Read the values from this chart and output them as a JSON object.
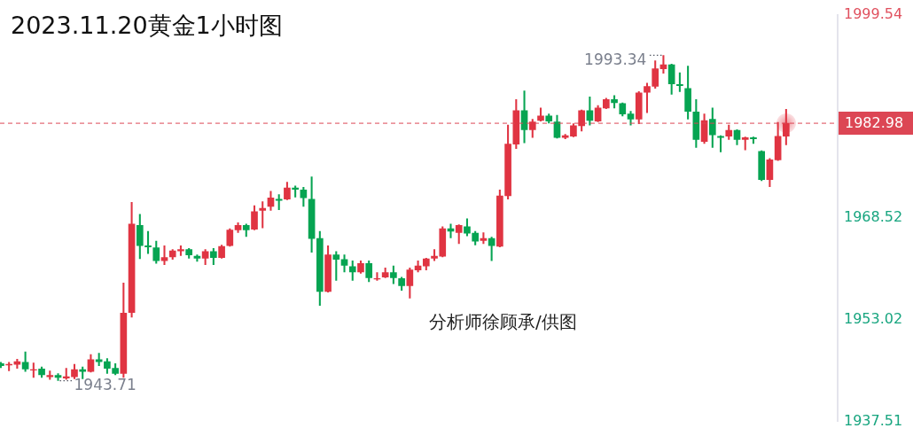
{
  "chart_data": {
    "type": "candlestick",
    "title": "2023.11.20黄金1小时图",
    "categories": [
      null,
      null,
      null,
      null,
      null,
      null,
      null,
      null,
      null,
      null,
      null,
      null,
      null,
      null,
      null,
      null,
      null,
      null,
      null,
      null,
      null,
      null,
      null,
      null,
      null,
      null,
      null,
      null,
      null,
      null,
      null,
      null,
      null,
      null,
      null,
      null,
      null,
      null,
      null,
      null,
      null,
      null,
      null,
      null,
      null,
      null,
      null,
      null,
      null,
      null,
      null,
      null,
      null,
      null,
      null,
      null,
      null,
      null,
      null,
      null,
      null,
      null,
      null,
      null,
      null,
      null,
      null,
      null,
      null,
      null,
      null,
      null,
      null,
      null,
      null,
      null,
      null,
      null,
      null,
      null,
      null,
      null,
      null,
      null,
      null,
      null,
      null,
      null,
      null,
      null,
      null,
      null,
      null,
      null,
      null,
      null,
      null
    ],
    "ohlc": [
      [
        1946.3,
        1946.5,
        1945.7,
        1946.0
      ],
      [
        1946.1,
        1946.5,
        1945.2,
        1946.2
      ],
      [
        1946.2,
        1947.0,
        1945.6,
        1946.6
      ],
      [
        1946.5,
        1948.1,
        1945.1,
        1945.5
      ],
      [
        1945.3,
        1946.4,
        1944.2,
        1945.4
      ],
      [
        1945.5,
        1945.8,
        1944.2,
        1944.6
      ],
      [
        1944.3,
        1945.2,
        1943.9,
        1944.5
      ],
      [
        1944.5,
        1944.8,
        1943.71,
        1944.2
      ],
      [
        1944.1,
        1945.6,
        1943.9,
        1944.3
      ],
      [
        1944.3,
        1946.2,
        1944.0,
        1945.4
      ],
      [
        1945.4,
        1945.8,
        1944.0,
        1945.1
      ],
      [
        1945.1,
        1947.7,
        1945.0,
        1946.9
      ],
      [
        1946.9,
        1947.9,
        1946.0,
        1946.6
      ],
      [
        1946.6,
        1947.1,
        1944.8,
        1945.6
      ],
      [
        1945.6,
        1946.3,
        1944.6,
        1944.8
      ],
      [
        1944.8,
        1958.6,
        1944.2,
        1954.0
      ],
      [
        1954.1,
        1970.9,
        1953.4,
        1967.6
      ],
      [
        1967.4,
        1969.1,
        1962.3,
        1964.3
      ],
      [
        1964.3,
        1966.5,
        1963.1,
        1964.1
      ],
      [
        1964.0,
        1965.0,
        1961.6,
        1962.0
      ],
      [
        1962.0,
        1964.3,
        1961.4,
        1962.5
      ],
      [
        1962.6,
        1963.7,
        1962.2,
        1963.5
      ],
      [
        1963.5,
        1964.3,
        1962.8,
        1963.7
      ],
      [
        1963.7,
        1963.9,
        1962.4,
        1962.9
      ],
      [
        1962.7,
        1962.9,
        1961.9,
        1962.4
      ],
      [
        1962.4,
        1963.7,
        1961.4,
        1963.4
      ],
      [
        1963.4,
        1963.9,
        1961.4,
        1962.5
      ],
      [
        1962.5,
        1964.4,
        1962.4,
        1964.2
      ],
      [
        1964.3,
        1966.9,
        1964.2,
        1966.7
      ],
      [
        1966.7,
        1967.8,
        1966.3,
        1967.4
      ],
      [
        1967.4,
        1967.6,
        1965.7,
        1966.7
      ],
      [
        1966.8,
        1970.4,
        1966.7,
        1969.5
      ],
      [
        1969.7,
        1971.0,
        1967.0,
        1970.0
      ],
      [
        1970.3,
        1972.6,
        1969.7,
        1971.6
      ],
      [
        1971.4,
        1972.1,
        1969.8,
        1971.2
      ],
      [
        1971.4,
        1974.0,
        1971.3,
        1973.1
      ],
      [
        1973.1,
        1973.4,
        1971.7,
        1972.9
      ],
      [
        1972.8,
        1973.2,
        1970.3,
        1971.6
      ],
      [
        1971.4,
        1974.8,
        1963.3,
        1965.4
      ],
      [
        1965.4,
        1966.5,
        1955.2,
        1957.3
      ],
      [
        1957.3,
        1964.3,
        1957.2,
        1962.9
      ],
      [
        1962.9,
        1963.4,
        1959.0,
        1962.2
      ],
      [
        1962.2,
        1962.9,
        1960.3,
        1961.3
      ],
      [
        1961.1,
        1962.0,
        1959.0,
        1960.3
      ],
      [
        1960.3,
        1962.0,
        1960.1,
        1961.6
      ],
      [
        1961.6,
        1962.0,
        1958.8,
        1959.4
      ],
      [
        1959.2,
        1960.2,
        1959.0,
        1959.3
      ],
      [
        1959.5,
        1960.9,
        1959.4,
        1960.2
      ],
      [
        1960.2,
        1961.2,
        1958.5,
        1959.4
      ],
      [
        1959.3,
        1959.5,
        1957.5,
        1958.2
      ],
      [
        1958.2,
        1960.9,
        1956.3,
        1960.6
      ],
      [
        1960.6,
        1962.0,
        1960.3,
        1961.2
      ],
      [
        1961.2,
        1962.4,
        1960.6,
        1962.3
      ],
      [
        1962.4,
        1963.7,
        1962.0,
        1962.7
      ],
      [
        1962.7,
        1967.2,
        1962.6,
        1966.9
      ],
      [
        1966.9,
        1967.6,
        1965.5,
        1966.5
      ],
      [
        1966.3,
        1967.5,
        1964.6,
        1967.4
      ],
      [
        1967.2,
        1968.4,
        1965.8,
        1966.2
      ],
      [
        1966.2,
        1966.5,
        1964.4,
        1965.0
      ],
      [
        1965.1,
        1966.3,
        1964.6,
        1965.4
      ],
      [
        1965.4,
        1965.6,
        1962.0,
        1964.3
      ],
      [
        1964.2,
        1972.8,
        1964.1,
        1971.9
      ],
      [
        1971.9,
        1982.7,
        1971.4,
        1979.8
      ],
      [
        1979.8,
        1986.6,
        1979.1,
        1984.9
      ],
      [
        1984.9,
        1987.9,
        1980.0,
        1982.0
      ],
      [
        1982.0,
        1983.6,
        1980.8,
        1983.2
      ],
      [
        1983.4,
        1985.3,
        1983.3,
        1984.1
      ],
      [
        1984.1,
        1984.4,
        1983.0,
        1983.3
      ],
      [
        1983.2,
        1984.2,
        1980.7,
        1980.8
      ],
      [
        1980.8,
        1981.3,
        1980.6,
        1981.1
      ],
      [
        1981.0,
        1982.9,
        1980.9,
        1982.6
      ],
      [
        1982.6,
        1985.0,
        1981.8,
        1984.9
      ],
      [
        1984.9,
        1987.0,
        1982.7,
        1983.4
      ],
      [
        1983.3,
        1985.7,
        1983.2,
        1985.3
      ],
      [
        1985.3,
        1986.8,
        1985.2,
        1986.6
      ],
      [
        1986.6,
        1987.2,
        1985.3,
        1986.1
      ],
      [
        1986.0,
        1986.1,
        1984.1,
        1984.4
      ],
      [
        1984.4,
        1984.8,
        1982.7,
        1983.6
      ],
      [
        1983.6,
        1987.8,
        1982.9,
        1987.6
      ],
      [
        1987.7,
        1989.1,
        1984.6,
        1988.6
      ],
      [
        1988.6,
        1992.5,
        1988.3,
        1991.3
      ],
      [
        1991.3,
        1993.34,
        1990.6,
        1991.9
      ],
      [
        1991.9,
        1992.0,
        1987.4,
        1989.0
      ],
      [
        1988.9,
        1990.7,
        1987.8,
        1988.7
      ],
      [
        1988.3,
        1991.7,
        1983.6,
        1984.8
      ],
      [
        1984.7,
        1986.6,
        1979.3,
        1980.5
      ],
      [
        1980.2,
        1984.4,
        1979.9,
        1983.4
      ],
      [
        1983.6,
        1985.3,
        1979.3,
        1981.2
      ],
      [
        1981.0,
        1981.1,
        1978.6,
        1980.8
      ],
      [
        1981.0,
        1982.7,
        1980.5,
        1981.9
      ],
      [
        1981.9,
        1982.0,
        1979.7,
        1980.5
      ],
      [
        1980.5,
        1980.9,
        1978.9,
        1980.8
      ],
      [
        1980.8,
        1980.9,
        1979.9,
        1980.6
      ],
      [
        1978.7,
        1978.8,
        1974.2,
        1974.4
      ],
      [
        1974.4,
        1977.6,
        1973.3,
        1977.4
      ],
      [
        1977.4,
        1983.1,
        1977.3,
        1981.0
      ],
      [
        1981.0,
        1985.1,
        1979.7,
        1982.98
      ]
    ],
    "colors": [
      "#06a452",
      "#e03442",
      "#e03442",
      "#06a452",
      "#e03442",
      "#06a452",
      "#e03442",
      "#06a452",
      "#e03442",
      "#e03442",
      "#06a452",
      "#e03442",
      "#06a452",
      "#06a452",
      "#06a452",
      "#e03442",
      "#e03442",
      "#06a452",
      "#06a452",
      "#06a452",
      "#e03442",
      "#e03442",
      "#e03442",
      "#06a452",
      "#06a452",
      "#e03442",
      "#06a452",
      "#e03442",
      "#e03442",
      "#e03442",
      "#06a452",
      "#e03442",
      "#e03442",
      "#e03442",
      "#06a452",
      "#e03442",
      "#06a452",
      "#06a452",
      "#06a452",
      "#06a452",
      "#e03442",
      "#06a452",
      "#06a452",
      "#06a452",
      "#e03442",
      "#06a452",
      "#e03442",
      "#e03442",
      "#06a452",
      "#06a452",
      "#e03442",
      "#e03442",
      "#e03442",
      "#e03442",
      "#e03442",
      "#06a452",
      "#e03442",
      "#06a452",
      "#06a452",
      "#e03442",
      "#06a452",
      "#e03442",
      "#e03442",
      "#e03442",
      "#06a452",
      "#e03442",
      "#e03442",
      "#06a452",
      "#06a452",
      "#e03442",
      "#e03442",
      "#e03442",
      "#06a452",
      "#e03442",
      "#e03442",
      "#06a452",
      "#06a452",
      "#06a452",
      "#e03442",
      "#e03442",
      "#e03442",
      "#e03442",
      "#06a452",
      "#06a452",
      "#06a452",
      "#06a452",
      "#e03442",
      "#06a452",
      "#06a452",
      "#e03442",
      "#06a452",
      "#e03442",
      "#06a452",
      "#06a452",
      "#e03442",
      "#e03442",
      "#e03442"
    ],
    "ylim": [
      1937.51,
      1999.54
    ],
    "yticks": [
      1937.51,
      1953.02,
      1968.52,
      1999.54
    ],
    "tick_labels": "y",
    "ref_lines": [
      {
        "axis": "y",
        "value": 1982.98,
        "label": "1982.98",
        "color": "#dc4654",
        "line_style": "dashed"
      }
    ],
    "annotations": [
      "1993.34",
      "1943.71",
      "分析师徐顾承/供图"
    ]
  }
}
